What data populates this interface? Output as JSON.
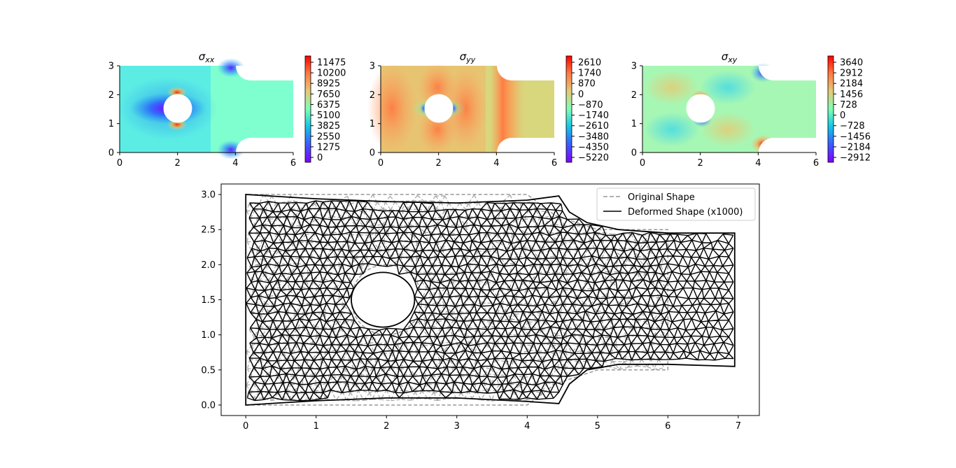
{
  "chart_data": [
    {
      "type": "heatmap",
      "panel": "sigma_xx",
      "title": "σxx",
      "title_symbol": "σ",
      "title_subscript": "xx",
      "xlim": [
        0,
        6
      ],
      "ylim": [
        0,
        3
      ],
      "x_ticks": [
        "0",
        "2",
        "4",
        "6"
      ],
      "y_ticks": [
        "0",
        "1",
        "2",
        "3"
      ],
      "colorbar_ticks": [
        "11475",
        "10200",
        "8925",
        "7650",
        "6375",
        "5100",
        "3825",
        "2550",
        "1275",
        "0"
      ],
      "colormap": "rainbow",
      "background_color": "#7fffd0"
    },
    {
      "type": "heatmap",
      "panel": "sigma_yy",
      "title": "σyy",
      "title_symbol": "σ",
      "title_subscript": "yy",
      "xlim": [
        0,
        6
      ],
      "ylim": [
        0,
        3
      ],
      "x_ticks": [
        "0",
        "2",
        "4",
        "6"
      ],
      "y_ticks": [
        "0",
        "1",
        "2",
        "3"
      ],
      "colorbar_ticks": [
        "2610",
        "1740",
        "870",
        "0",
        "−870",
        "−1740",
        "−2610",
        "−3480",
        "−4350",
        "−5220"
      ],
      "colormap": "rainbow",
      "background_color": "#d8d77e"
    },
    {
      "type": "heatmap",
      "panel": "sigma_xy",
      "title": "σxy",
      "title_symbol": "σ",
      "title_subscript": "xy",
      "xlim": [
        0,
        6
      ],
      "ylim": [
        0,
        3
      ],
      "x_ticks": [
        "0",
        "2",
        "4",
        "6"
      ],
      "y_ticks": [
        "0",
        "1",
        "2",
        "3"
      ],
      "colorbar_ticks": [
        "3640",
        "2912",
        "2184",
        "1456",
        "728",
        "0",
        "−728",
        "−1456",
        "−2184",
        "−2912"
      ],
      "colormap": "rainbow",
      "background_color": "#a7f7b4"
    },
    {
      "type": "line",
      "panel": "mesh",
      "xlim": [
        -0.35,
        7.3
      ],
      "ylim": [
        -0.15,
        3.15
      ],
      "x_ticks": [
        "0",
        "1",
        "2",
        "3",
        "4",
        "5",
        "6",
        "7"
      ],
      "y_ticks": [
        "0.0",
        "0.5",
        "1.0",
        "1.5",
        "2.0",
        "2.5",
        "3.0"
      ],
      "grid": false,
      "legend_position": "upper right",
      "series": [
        {
          "name": "Original Shape",
          "color": "#999999",
          "style": "dashed",
          "outline": [
            [
              0,
              0
            ],
            [
              4,
              0
            ],
            [
              4.4,
              0.3
            ],
            [
              5,
              0.5
            ],
            [
              6,
              0.5
            ],
            [
              6,
              2.5
            ],
            [
              5,
              2.5
            ],
            [
              4.4,
              2.7
            ],
            [
              4,
              3
            ],
            [
              0,
              3
            ]
          ],
          "hole": {
            "cx": 2,
            "cy": 1.5,
            "r": 0.5
          }
        },
        {
          "name": "Deformed Shape (x1000)",
          "color": "#000000",
          "style": "solid",
          "outline": [
            [
              0,
              0
            ],
            [
              0.5,
              0.03
            ],
            [
              1,
              0.06
            ],
            [
              2,
              0.1
            ],
            [
              3,
              0.1
            ],
            [
              4,
              0.05
            ],
            [
              4.45,
              0.02
            ],
            [
              4.6,
              0.3
            ],
            [
              4.85,
              0.5
            ],
            [
              5.3,
              0.58
            ],
            [
              6,
              0.58
            ],
            [
              6.95,
              0.55
            ],
            [
              6.95,
              2.45
            ],
            [
              6,
              2.45
            ],
            [
              5.3,
              2.5
            ],
            [
              4.85,
              2.6
            ],
            [
              4.6,
              2.75
            ],
            [
              4.45,
              2.98
            ],
            [
              4,
              2.92
            ],
            [
              3,
              2.88
            ],
            [
              2,
              2.9
            ],
            [
              1,
              2.94
            ],
            [
              0.5,
              2.97
            ],
            [
              0,
              3
            ]
          ],
          "hole": {
            "cx": 1.95,
            "cy": 1.5,
            "rx": 0.45,
            "ry": 0.39
          }
        }
      ]
    }
  ]
}
